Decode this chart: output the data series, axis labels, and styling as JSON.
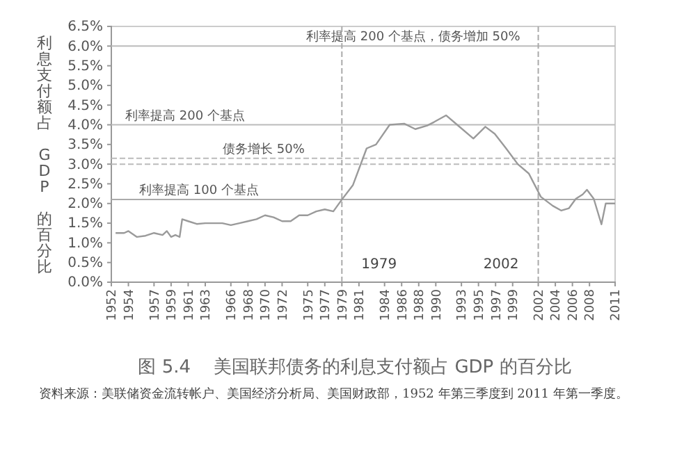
{
  "chart_data": {
    "type": "line",
    "title": "图 5.4    美国联邦债务的利息支付额占 GDP 的百分比",
    "ylabel": "利息支付额占 GDP 的百分比",
    "x": [
      1952.5,
      1953.5,
      1954,
      1955,
      1956,
      1957,
      1958,
      1958.5,
      1959,
      1959.5,
      1960,
      1960.3,
      1961,
      1962,
      1963,
      1964,
      1965,
      1966,
      1967,
      1968,
      1969,
      1970,
      1971,
      1972,
      1973,
      1974,
      1975,
      1976,
      1977,
      1978,
      1979,
      1980.3,
      1981.9,
      1983,
      1984.6,
      1986.3,
      1987.6,
      1989,
      1989.8,
      1991.2,
      1992.5,
      1994.4,
      1995.8,
      1996.9,
      1998.2,
      1999.6,
      2000.9,
      2002.3,
      2003.7,
      2004.7,
      2005.6,
      2006.4,
      2007.2,
      2007.7,
      2008.5,
      2009.4,
      2009.9,
      2011
    ],
    "series": [
      {
        "color": "#9a9a9a",
        "values": [
          1.25,
          1.25,
          1.3,
          1.15,
          1.18,
          1.25,
          1.2,
          1.3,
          1.15,
          1.2,
          1.15,
          1.6,
          1.55,
          1.48,
          1.5,
          1.5,
          1.5,
          1.45,
          1.5,
          1.55,
          1.6,
          1.7,
          1.65,
          1.55,
          1.55,
          1.7,
          1.7,
          1.8,
          1.85,
          1.8,
          2.1,
          2.47,
          3.4,
          3.5,
          4.0,
          4.03,
          3.89,
          3.98,
          4.07,
          4.24,
          4.0,
          3.65,
          3.95,
          3.77,
          3.41,
          3.0,
          2.76,
          2.17,
          1.94,
          1.82,
          1.88,
          2.12,
          2.23,
          2.35,
          2.12,
          1.47,
          2.0,
          2.0
        ]
      }
    ],
    "xlim": [
      1952,
      2011
    ],
    "xticks": [
      1952,
      1954,
      1957,
      1959,
      1961,
      1963,
      1966,
      1968,
      1970,
      1972,
      1975,
      1977,
      1979,
      1981,
      1984,
      1986,
      1988,
      1990,
      1993,
      1995,
      1997,
      1999,
      2002,
      2004,
      2006,
      2008,
      2011
    ],
    "ylim": [
      0,
      6.5
    ],
    "yticks": [
      {
        "value": 0,
        "label": "0.0%"
      },
      {
        "value": 0.5,
        "label": "0.5%"
      },
      {
        "value": 1,
        "label": "1.0%"
      },
      {
        "value": 1.5,
        "label": "1.5%"
      },
      {
        "value": 2,
        "label": "2.0%"
      },
      {
        "value": 2.5,
        "label": "2.5%"
      },
      {
        "value": 3,
        "label": "3.0%"
      },
      {
        "value": 3.5,
        "label": "3.5%"
      },
      {
        "value": 4,
        "label": "4.0%"
      },
      {
        "value": 4.5,
        "label": "4.5%"
      },
      {
        "value": 5,
        "label": "5.0%"
      },
      {
        "value": 5.5,
        "label": "5.5%"
      },
      {
        "value": 6,
        "label": "6.0%"
      },
      {
        "value": 6.5,
        "label": "6.5%"
      }
    ],
    "marker": "none",
    "line_style": "solid",
    "ref_lines": [
      {
        "axis": "y",
        "value": 2.1,
        "label": "利率提高 100 个基点",
        "color": "#aaaaaa"
      },
      {
        "axis": "y",
        "value": 3.0,
        "label": null,
        "color": "#bbbbbb",
        "line_style": "dashed"
      },
      {
        "axis": "y",
        "value": 3.15,
        "label": "债务增长 50%",
        "color": "#bbbbbb",
        "line_style": "dashed"
      },
      {
        "axis": "y",
        "value": 4.0,
        "label": "利率提高 200 个基点",
        "color": "#bbbbbb"
      },
      {
        "axis": "y",
        "value": 6.0,
        "label": "利率提高 200 个基点，债务增加 50%",
        "color": "#bbbbbb"
      },
      {
        "axis": "x",
        "value": 1979,
        "label": "1979",
        "color": "#aaaaaa",
        "line_style": "dashed"
      },
      {
        "axis": "x",
        "value": 2002,
        "label": "2002",
        "color": "#aaaaaa",
        "line_style": "dashed"
      }
    ],
    "annotations": [
      "资料来源：美联储资金流转帐户、美国经济分析局、美国财政部，1952 年第三季度到 2011 年第一季度。"
    ]
  }
}
